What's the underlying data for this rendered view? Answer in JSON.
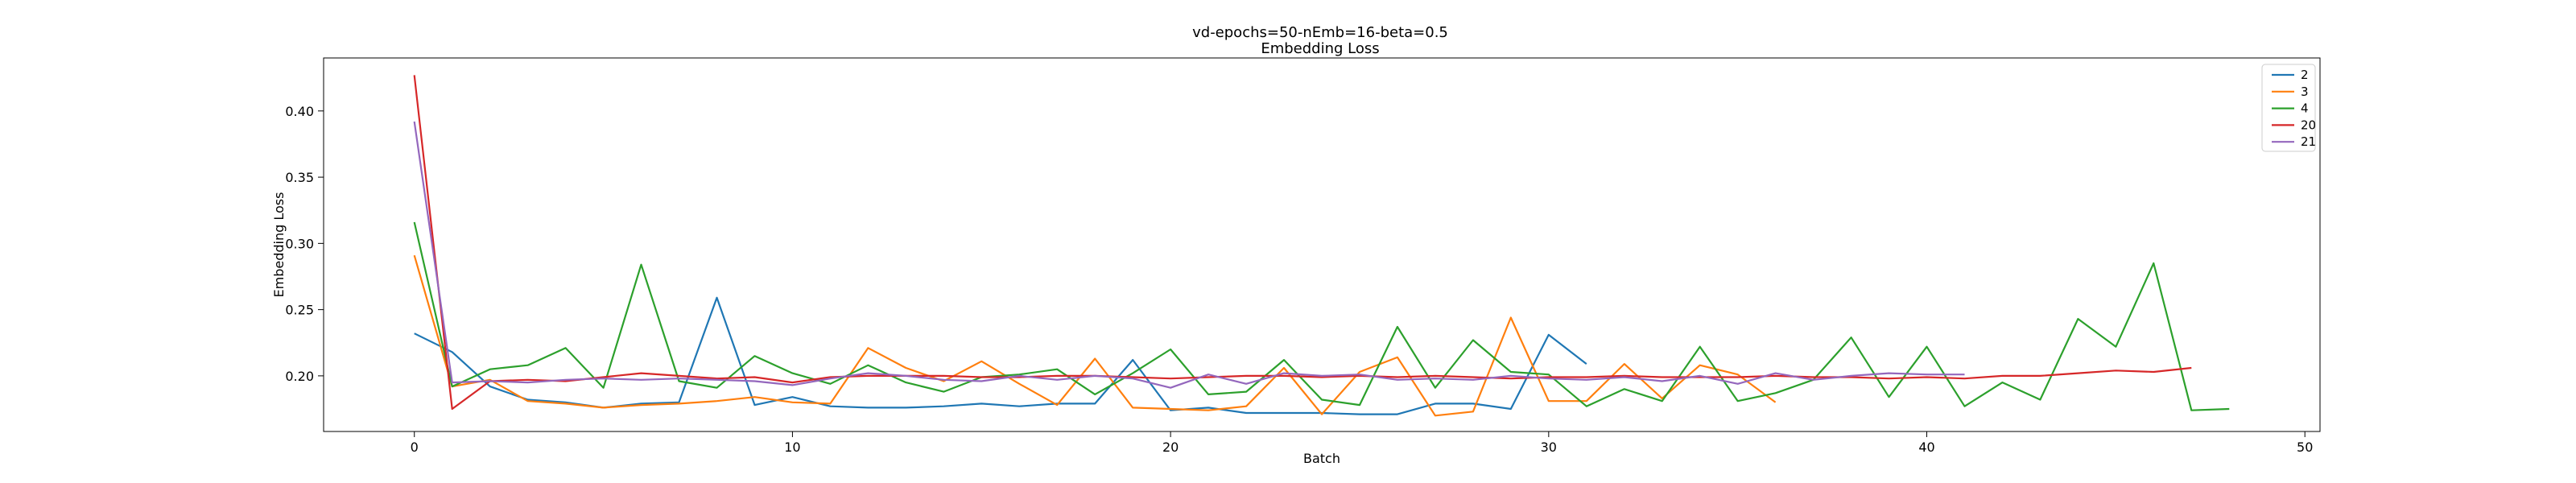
{
  "chart_data": {
    "type": "line",
    "title": "vd-epochs=50-nEmb=16-beta=0.5",
    "subtitle": "Embedding Loss",
    "xlabel": "Batch",
    "ylabel": "Embedding Loss",
    "xlim": [
      -2.4,
      50.4
    ],
    "ylim": [
      0.158,
      0.44
    ],
    "xticks": [
      0,
      10,
      20,
      30,
      40,
      50
    ],
    "yticks": [
      0.2,
      0.25,
      0.3,
      0.35,
      0.4
    ],
    "xtick_labels": [
      "0",
      "10",
      "20",
      "30",
      "40",
      "50"
    ],
    "ytick_labels": [
      "0.20",
      "0.25",
      "0.30",
      "0.35",
      "0.40"
    ],
    "grid": false,
    "legend_position": "top-right",
    "series": [
      {
        "name": "2",
        "color": "#1f77b4",
        "values": [
          0.232,
          0.218,
          0.192,
          0.182,
          0.18,
          0.176,
          0.179,
          0.18,
          0.259,
          0.178,
          0.184,
          0.177,
          0.176,
          0.176,
          0.177,
          0.179,
          0.177,
          0.179,
          0.179,
          0.212,
          0.174,
          0.176,
          0.172,
          0.172,
          0.172,
          0.171,
          0.171,
          0.179,
          0.179,
          0.175,
          0.231,
          0.209
        ]
      },
      {
        "name": "3",
        "color": "#ff7f0e",
        "values": [
          0.291,
          0.192,
          0.197,
          0.181,
          0.179,
          0.176,
          0.178,
          0.179,
          0.181,
          0.184,
          0.18,
          0.179,
          0.221,
          0.206,
          0.196,
          0.211,
          0.194,
          0.178,
          0.213,
          0.176,
          0.175,
          0.174,
          0.177,
          0.206,
          0.171,
          0.203,
          0.214,
          0.17,
          0.173,
          0.244,
          0.181,
          0.181,
          0.209,
          0.183,
          0.208,
          0.201,
          0.18
        ]
      },
      {
        "name": "4",
        "color": "#2ca02c",
        "values": [
          0.316,
          0.192,
          0.205,
          0.208,
          0.221,
          0.191,
          0.284,
          0.196,
          0.191,
          0.215,
          0.202,
          0.194,
          0.208,
          0.195,
          0.188,
          0.199,
          0.201,
          0.205,
          0.186,
          0.202,
          0.22,
          0.186,
          0.188,
          0.212,
          0.182,
          0.178,
          0.237,
          0.191,
          0.227,
          0.203,
          0.201,
          0.177,
          0.19,
          0.181,
          0.222,
          0.181,
          0.187,
          0.197,
          0.229,
          0.184,
          0.222,
          0.177,
          0.195,
          0.182,
          0.243,
          0.222,
          0.285,
          0.174,
          0.175
        ]
      },
      {
        "name": "20",
        "color": "#d62728",
        "values": [
          0.427,
          0.175,
          0.196,
          0.197,
          0.196,
          0.199,
          0.202,
          0.2,
          0.198,
          0.199,
          0.195,
          0.199,
          0.2,
          0.2,
          0.2,
          0.199,
          0.199,
          0.2,
          0.2,
          0.199,
          0.198,
          0.199,
          0.2,
          0.2,
          0.199,
          0.2,
          0.199,
          0.2,
          0.199,
          0.198,
          0.199,
          0.199,
          0.2,
          0.199,
          0.199,
          0.199,
          0.2,
          0.199,
          0.199,
          0.198,
          0.199,
          0.198,
          0.2,
          0.2,
          0.202,
          0.204,
          0.203,
          0.206
        ]
      },
      {
        "name": "21",
        "color": "#9467bd",
        "values": [
          0.392,
          0.195,
          0.196,
          0.195,
          0.197,
          0.198,
          0.197,
          0.198,
          0.197,
          0.196,
          0.193,
          0.198,
          0.202,
          0.2,
          0.197,
          0.196,
          0.2,
          0.197,
          0.2,
          0.198,
          0.191,
          0.201,
          0.194,
          0.202,
          0.2,
          0.201,
          0.197,
          0.198,
          0.197,
          0.2,
          0.198,
          0.197,
          0.199,
          0.196,
          0.2,
          0.194,
          0.202,
          0.197,
          0.2,
          0.202,
          0.201,
          0.201
        ]
      }
    ]
  }
}
